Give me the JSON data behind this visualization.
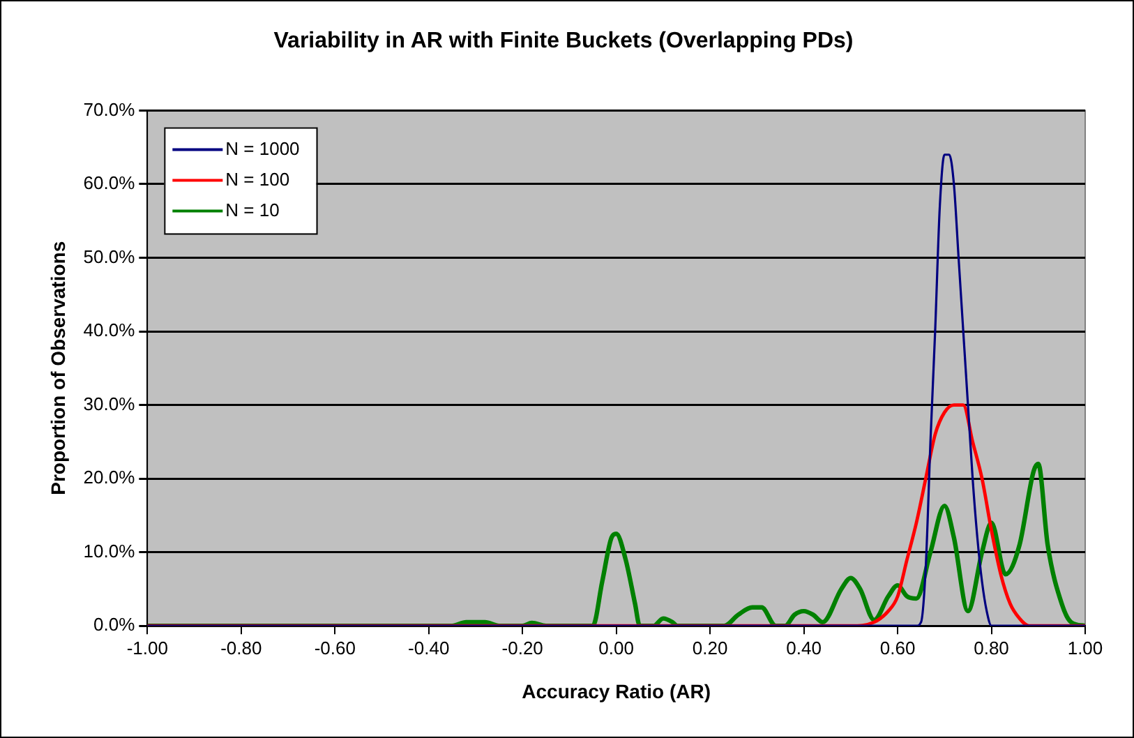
{
  "chart_data": {
    "type": "line",
    "title": "Variability in AR with Finite Buckets (Overlapping PDs)",
    "xlabel": "Accuracy Ratio (AR)",
    "ylabel": "Proportion of Observations",
    "xlim": [
      -1,
      1
    ],
    "xticks": [
      {
        "value": -1,
        "label": "-1.00"
      },
      {
        "value": -0.8,
        "label": "-0.80"
      },
      {
        "value": -0.6,
        "label": "-0.60"
      },
      {
        "value": -0.4,
        "label": "-0.40"
      },
      {
        "value": -0.2,
        "label": "-0.20"
      },
      {
        "value": 0,
        "label": "0.00"
      },
      {
        "value": 0.2,
        "label": "0.20"
      },
      {
        "value": 0.4,
        "label": "0.40"
      },
      {
        "value": 0.6,
        "label": "0.60"
      },
      {
        "value": 0.8,
        "label": "0.80"
      },
      {
        "value": 1,
        "label": "1.00"
      }
    ],
    "ylim": [
      0,
      70
    ],
    "yticks": [
      {
        "value": 0,
        "label": "0.0%"
      },
      {
        "value": 10,
        "label": "10.0%"
      },
      {
        "value": 20,
        "label": "20.0%"
      },
      {
        "value": 30,
        "label": "30.0%"
      },
      {
        "value": 40,
        "label": "40.0%"
      },
      {
        "value": 50,
        "label": "50.0%"
      },
      {
        "value": 60,
        "label": "60.0%"
      },
      {
        "value": 70,
        "label": "70.0%"
      }
    ],
    "grid": "y",
    "legend": "top left",
    "marker": "none",
    "line_style": "solid",
    "series": [
      {
        "name": "N = 1000",
        "color": "#000080",
        "x": [
          -1,
          0.6,
          0.64,
          0.65,
          0.66,
          0.67,
          0.68,
          0.69,
          0.7,
          0.71,
          0.72,
          0.73,
          0.74,
          0.75,
          0.76,
          0.77,
          0.78,
          0.79,
          0.8,
          1
        ],
        "values": [
          0,
          0,
          0,
          0.5,
          8,
          25,
          40,
          57,
          64,
          64,
          60,
          50,
          40,
          30,
          20,
          12,
          6,
          2,
          0,
          0
        ]
      },
      {
        "name": "N = 100",
        "color": "#ff0000",
        "x": [
          -1,
          0.5,
          0.55,
          0.58,
          0.6,
          0.62,
          0.64,
          0.66,
          0.68,
          0.7,
          0.72,
          0.74,
          0.76,
          0.78,
          0.8,
          0.82,
          0.84,
          0.86,
          0.88,
          1
        ],
        "values": [
          0,
          0,
          0.5,
          2,
          4,
          9,
          14,
          20,
          26,
          29,
          30,
          30,
          25,
          20,
          13,
          7,
          3,
          1,
          0,
          0
        ]
      },
      {
        "name": "N = 10",
        "color": "#008000",
        "x": [
          -1,
          -0.35,
          -0.32,
          -0.28,
          -0.25,
          -0.2,
          -0.18,
          -0.15,
          -0.05,
          -0.03,
          -0.01,
          0,
          0.02,
          0.04,
          0.05,
          0.08,
          0.1,
          0.12,
          0.13,
          0.2,
          0.23,
          0.26,
          0.29,
          0.31,
          0.34,
          0.36,
          0.38,
          0.4,
          0.42,
          0.44,
          0.48,
          0.5,
          0.52,
          0.55,
          0.58,
          0.6,
          0.62,
          0.64,
          0.67,
          0.7,
          0.72,
          0.75,
          0.78,
          0.8,
          0.83,
          0.86,
          0.89,
          0.9,
          0.92,
          0.95,
          0.97,
          1
        ],
        "values": [
          0,
          0,
          0.5,
          0.5,
          0,
          0,
          0.4,
          0,
          0,
          6,
          12,
          12.5,
          9,
          3,
          0,
          0,
          1,
          0.5,
          0,
          0,
          0,
          1.5,
          2.5,
          2.5,
          0,
          0,
          1.5,
          2,
          1.5,
          0.5,
          5,
          6.5,
          5,
          0.8,
          4,
          5.5,
          4,
          3.7,
          10,
          16.3,
          12,
          2,
          10,
          14,
          7,
          11,
          21,
          22,
          11,
          3,
          0.5,
          0
        ]
      }
    ]
  }
}
